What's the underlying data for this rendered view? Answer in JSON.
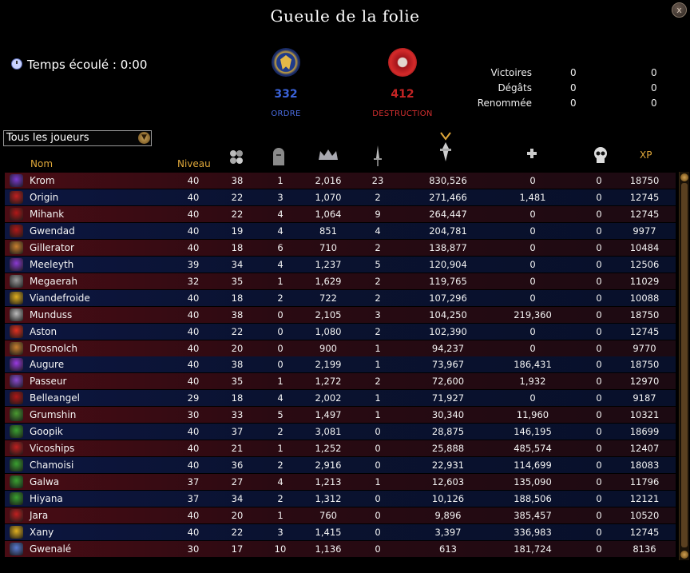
{
  "window": {
    "title": "Gueule de la folie",
    "close_label": "x"
  },
  "timer": {
    "label": "Temps écoulé : 0:00"
  },
  "realms": {
    "order": {
      "score": "332",
      "name": "ORDRE",
      "color": "#3a62d8"
    },
    "destruction": {
      "score": "412",
      "name": "DESTRUCTION",
      "color": "#c52424"
    }
  },
  "stats": [
    {
      "label": "Victoires",
      "order": "0",
      "destruction": "0"
    },
    {
      "label": "Dégâts",
      "order": "0",
      "destruction": "0"
    },
    {
      "label": "Renommée",
      "order": "0",
      "destruction": "0"
    }
  ],
  "filter": {
    "selected": "Tous les joueurs"
  },
  "columns": {
    "name": "Nom",
    "level": "Niveau",
    "xp": "XP"
  },
  "column_icons": [
    "kills-icon",
    "deaths-icon",
    "renown-crown-icon",
    "dagger-icon",
    "damage-icon",
    "healing-icon",
    "skull-icon"
  ],
  "players": [
    {
      "name": "Krom",
      "level": "40",
      "c1": "38",
      "c2": "1",
      "c3": "2,016",
      "c4": "23",
      "damage": "830,526",
      "heal": "0",
      "c7": "0",
      "xp": "18750",
      "realm": "destruction",
      "icon_color": "#7a3ad0"
    },
    {
      "name": "Origin",
      "level": "40",
      "c1": "22",
      "c2": "3",
      "c3": "1,070",
      "c4": "2",
      "damage": "271,466",
      "heal": "1,481",
      "c7": "0",
      "xp": "12745",
      "realm": "order",
      "icon_color": "#c02020"
    },
    {
      "name": "Mihank",
      "level": "40",
      "c1": "22",
      "c2": "4",
      "c3": "1,064",
      "c4": "9",
      "damage": "264,447",
      "heal": "0",
      "c7": "0",
      "xp": "12745",
      "realm": "destruction",
      "icon_color": "#b01818"
    },
    {
      "name": "Gwendad",
      "level": "40",
      "c1": "19",
      "c2": "4",
      "c3": "851",
      "c4": "4",
      "damage": "204,781",
      "heal": "0",
      "c7": "0",
      "xp": "9977",
      "realm": "order",
      "icon_color": "#b01818"
    },
    {
      "name": "Gillerator",
      "level": "40",
      "c1": "18",
      "c2": "6",
      "c3": "710",
      "c4": "2",
      "damage": "138,877",
      "heal": "0",
      "c7": "0",
      "xp": "10484",
      "realm": "destruction",
      "icon_color": "#c88030"
    },
    {
      "name": "Meeleyth",
      "level": "39",
      "c1": "34",
      "c2": "4",
      "c3": "1,237",
      "c4": "5",
      "damage": "120,904",
      "heal": "0",
      "c7": "0",
      "xp": "12506",
      "realm": "order",
      "icon_color": "#8a3ad0"
    },
    {
      "name": "Megaerah",
      "level": "32",
      "c1": "35",
      "c2": "1",
      "c3": "1,629",
      "c4": "2",
      "damage": "119,765",
      "heal": "0",
      "c7": "0",
      "xp": "11029",
      "realm": "destruction",
      "icon_color": "#9a9a9a"
    },
    {
      "name": "Viandefroide",
      "level": "40",
      "c1": "18",
      "c2": "2",
      "c3": "722",
      "c4": "2",
      "damage": "107,296",
      "heal": "0",
      "c7": "0",
      "xp": "10088",
      "realm": "order",
      "icon_color": "#e0b020"
    },
    {
      "name": "Munduss",
      "level": "40",
      "c1": "38",
      "c2": "0",
      "c3": "2,105",
      "c4": "3",
      "damage": "104,250",
      "heal": "219,360",
      "c7": "0",
      "xp": "18750",
      "realm": "destruction",
      "icon_color": "#bbbbbb"
    },
    {
      "name": "Aston",
      "level": "40",
      "c1": "22",
      "c2": "0",
      "c3": "1,080",
      "c4": "2",
      "damage": "102,390",
      "heal": "0",
      "c7": "0",
      "xp": "12745",
      "realm": "order",
      "icon_color": "#e03020"
    },
    {
      "name": "Drosnolch",
      "level": "40",
      "c1": "20",
      "c2": "0",
      "c3": "900",
      "c4": "1",
      "damage": "94,237",
      "heal": "0",
      "c7": "0",
      "xp": "9770",
      "realm": "destruction",
      "icon_color": "#c88030"
    },
    {
      "name": "Augure",
      "level": "40",
      "c1": "38",
      "c2": "0",
      "c3": "2,199",
      "c4": "1",
      "damage": "73,967",
      "heal": "186,431",
      "c7": "0",
      "xp": "18750",
      "realm": "order",
      "icon_color": "#9a3ae0"
    },
    {
      "name": "Passeur",
      "level": "40",
      "c1": "35",
      "c2": "1",
      "c3": "1,272",
      "c4": "2",
      "damage": "72,600",
      "heal": "1,932",
      "c7": "0",
      "xp": "12970",
      "realm": "destruction",
      "icon_color": "#8a4ad0"
    },
    {
      "name": "Belleangel",
      "level": "29",
      "c1": "18",
      "c2": "4",
      "c3": "2,002",
      "c4": "1",
      "damage": "71,927",
      "heal": "0",
      "c7": "0",
      "xp": "9187",
      "realm": "order",
      "icon_color": "#b01818"
    },
    {
      "name": "Grumshin",
      "level": "30",
      "c1": "33",
      "c2": "5",
      "c3": "1,497",
      "c4": "1",
      "damage": "30,340",
      "heal": "11,960",
      "c7": "0",
      "xp": "10321",
      "realm": "destruction",
      "icon_color": "#4a9a30"
    },
    {
      "name": "Goopik",
      "level": "40",
      "c1": "37",
      "c2": "2",
      "c3": "3,081",
      "c4": "0",
      "damage": "28,875",
      "heal": "146,195",
      "c7": "0",
      "xp": "18699",
      "realm": "order",
      "icon_color": "#3aa030"
    },
    {
      "name": "Vicoships",
      "level": "40",
      "c1": "21",
      "c2": "1",
      "c3": "1,252",
      "c4": "0",
      "damage": "25,888",
      "heal": "485,574",
      "c7": "0",
      "xp": "12407",
      "realm": "destruction",
      "icon_color": "#c02020"
    },
    {
      "name": "Chamoisi",
      "level": "40",
      "c1": "36",
      "c2": "2",
      "c3": "2,916",
      "c4": "0",
      "damage": "22,931",
      "heal": "114,699",
      "c7": "0",
      "xp": "18083",
      "realm": "order",
      "icon_color": "#3aa030"
    },
    {
      "name": "Galwa",
      "level": "37",
      "c1": "27",
      "c2": "4",
      "c3": "1,213",
      "c4": "1",
      "damage": "12,603",
      "heal": "135,090",
      "c7": "0",
      "xp": "11796",
      "realm": "destruction",
      "icon_color": "#3aa030"
    },
    {
      "name": "Hiyana",
      "level": "37",
      "c1": "34",
      "c2": "2",
      "c3": "1,312",
      "c4": "0",
      "damage": "10,126",
      "heal": "188,506",
      "c7": "0",
      "xp": "12121",
      "realm": "order",
      "icon_color": "#3aa030"
    },
    {
      "name": "Jara",
      "level": "40",
      "c1": "20",
      "c2": "1",
      "c3": "760",
      "c4": "0",
      "damage": "9,896",
      "heal": "385,457",
      "c7": "0",
      "xp": "10520",
      "realm": "destruction",
      "icon_color": "#c02020"
    },
    {
      "name": "Xany",
      "level": "40",
      "c1": "22",
      "c2": "3",
      "c3": "1,415",
      "c4": "0",
      "damage": "3,397",
      "heal": "336,983",
      "c7": "0",
      "xp": "12745",
      "realm": "order",
      "icon_color": "#e0b020"
    },
    {
      "name": "Gwenalé",
      "level": "30",
      "c1": "17",
      "c2": "10",
      "c3": "1,136",
      "c4": "0",
      "damage": "613",
      "heal": "181,724",
      "c7": "0",
      "xp": "8136",
      "realm": "destruction",
      "icon_color": "#5a7ad0"
    }
  ]
}
